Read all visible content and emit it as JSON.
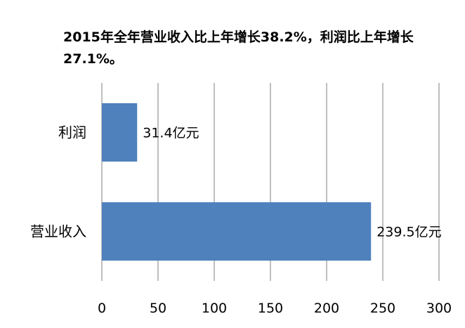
{
  "chart_data": {
    "type": "bar",
    "orientation": "horizontal",
    "title": "2015年全年营业收入比上年增长38.2%，利润比上年增长27.1%。",
    "categories": [
      "营业收入",
      "利润"
    ],
    "values": [
      239.5,
      31.4
    ],
    "data_labels": [
      "239.5亿元",
      "31.4亿元"
    ],
    "xlim": [
      0,
      300
    ],
    "x_ticks": [
      "0",
      "50",
      "100",
      "150",
      "200",
      "250",
      "300"
    ],
    "gridlines": "vertical",
    "bar_color": "#4F81BD",
    "grid_color": "#7F7F7F"
  }
}
